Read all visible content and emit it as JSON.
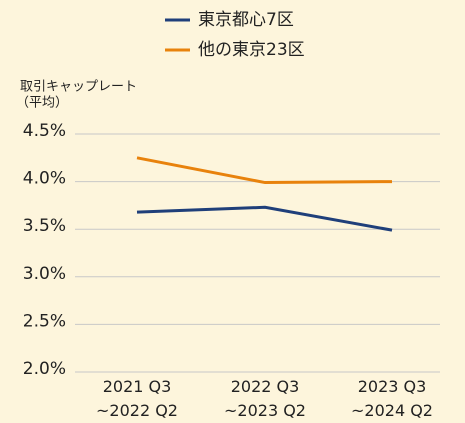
{
  "chart_data": {
    "type": "line",
    "ylabel": [
      "取引キャップレート",
      "（平均）"
    ],
    "categories": [
      "2021 Q3\n~2022 Q2",
      "2022 Q3\n~2023 Q2",
      "2023 Q3\n~2024 Q2"
    ],
    "series": [
      {
        "name": "東京都心7区",
        "color": "#1f3f7a",
        "values": [
          3.68,
          3.73,
          3.49
        ]
      },
      {
        "name": "他の東京23区",
        "color": "#e8820c",
        "values": [
          4.25,
          3.99,
          4.0
        ]
      }
    ],
    "ylim": [
      2.0,
      4.5
    ],
    "yticks": [
      {
        "value": 2.0,
        "label": "2.0%"
      },
      {
        "value": 2.5,
        "label": "2.5%"
      },
      {
        "value": 3.0,
        "label": "3.0%"
      },
      {
        "value": 3.5,
        "label": "3.5%"
      },
      {
        "value": 4.0,
        "label": "4.0%"
      },
      {
        "value": 4.5,
        "label": "4.5%"
      }
    ],
    "grid": true
  }
}
